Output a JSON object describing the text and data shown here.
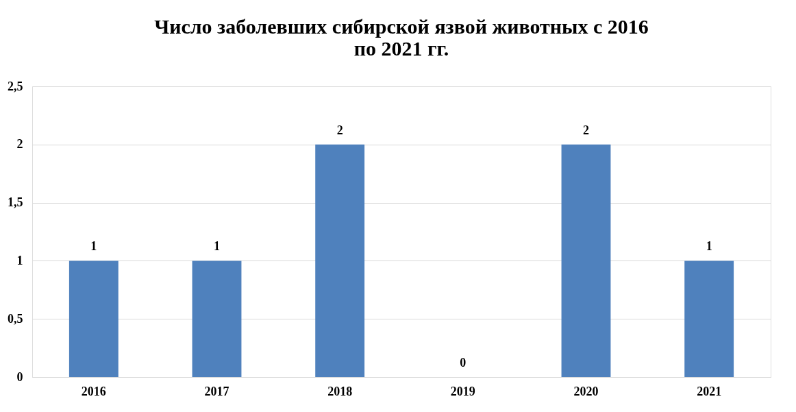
{
  "chart_data": {
    "type": "bar",
    "title": "Число заболевших сибирской язвой животных с 2016\nпо 2021 гг.",
    "categories": [
      "2016",
      "2017",
      "2018",
      "2019",
      "2020",
      "2021"
    ],
    "values": [
      1,
      1,
      2,
      0,
      2,
      1
    ],
    "color": "#4f81bd",
    "ylim": [
      0,
      2.5
    ],
    "yticks": [
      0,
      {
        "value": 0.5,
        "label": "0,5"
      },
      1,
      {
        "value": 1.5,
        "label": "1,5"
      },
      2,
      {
        "value": 2.5,
        "label": "2,5"
      }
    ],
    "grid": "y",
    "data_labels": true
  }
}
